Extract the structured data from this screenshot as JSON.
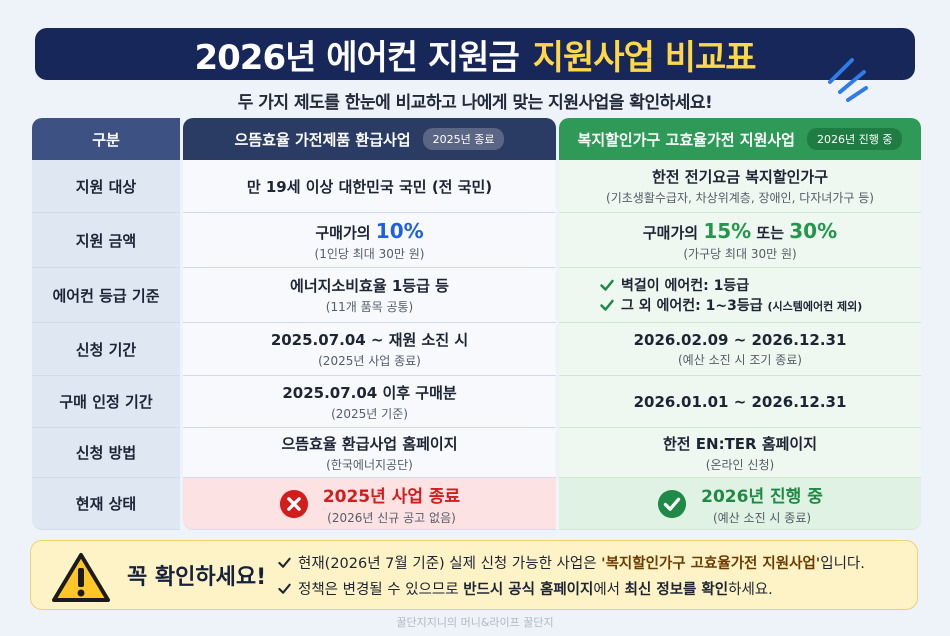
{
  "header": {
    "title": "2026년 에어컨 지원금",
    "title_highlight": "지원사업 비교표",
    "subtitle": "두 가지 제도를 한눈에 비교하고 나에게 맞는 지원사업을 확인하세요!"
  },
  "table": {
    "columns": [
      {
        "name": "구분"
      },
      {
        "name": "으뜸효율 가전제품 환급사업",
        "badge": "2025년 종료"
      },
      {
        "name": "복지할인가구 고효율가전 지원사업",
        "badge": "2026년 진행 중"
      }
    ],
    "rows": [
      {
        "label": "지원 대상",
        "a": {
          "main": [
            "만 19세 이상 대한민국 국민 (전 국민)"
          ]
        },
        "b": {
          "main": [
            "한전 전기요금 복지할인가구"
          ],
          "sub": "(기초생활수급자, 차상위계층, 장애인, 다자녀가구 등)"
        }
      },
      {
        "label": "지원 금액",
        "a": {
          "main": [
            "구매가의 ",
            "10%"
          ],
          "sub": "(1인당 최대 30만 원)"
        },
        "b": {
          "main": [
            "구매가의 ",
            "15%",
            " 또는 ",
            "30%"
          ],
          "sub": "(가구당 최대 30만 원)"
        }
      },
      {
        "label": "에어컨 등급 기준",
        "a": {
          "main": [
            "에너지소비효율 1등급 등"
          ],
          "sub": "(11개 품목 공통)"
        },
        "b": {
          "lines": [
            [
              "벽걸이 에어컨: 1등급"
            ],
            [
              "그 외 에어컨: 1~3등급 ",
              "(시스템에어컨 제외)"
            ]
          ]
        }
      },
      {
        "label": "신청 기간",
        "a": {
          "main": [
            "2025.07.04 ~ 재원 소진 시"
          ],
          "sub": "(2025년 사업 종료)"
        },
        "b": {
          "main": [
            "2026.02.09 ~ 2026.12.31"
          ],
          "sub": "(예산 소진 시 조기 종료)"
        }
      },
      {
        "label": "구매 인정 기간",
        "a": {
          "main": [
            "2025.07.04 이후 구매분"
          ],
          "sub": "(2025년 기준)"
        },
        "b": {
          "main": [
            "2026.01.01 ~ 2026.12.31"
          ]
        }
      },
      {
        "label": "신청 방법",
        "a": {
          "main": [
            "으뜸효율 환급사업 홈페이지"
          ],
          "sub": "(한국에너지공단)"
        },
        "b": {
          "main": [
            "한전 EN:TER 홈페이지"
          ],
          "sub": "(온라인 신청)"
        }
      },
      {
        "label": "현재 상태",
        "a": {
          "main": [
            "2025년 사업 종료"
          ],
          "sub": "(2026년 신규 공고 없음)"
        },
        "b": {
          "main": [
            "2026년 진행 중"
          ],
          "sub": "(예산 소진 시 종료)"
        }
      }
    ]
  },
  "notice": {
    "heading": "꼭 확인하세요!",
    "lines": [
      [
        "현재(2026년 7월 기준) 실제 신청 가능한 사업은 ",
        "'복지할인가구 고효율가전 지원사업'",
        "입니다."
      ],
      [
        "정책은 변경될 수 있으므로 ",
        "반드시 공식 홈페이지",
        "에서 ",
        "최신 정보를 확인",
        "하세요."
      ]
    ]
  },
  "footer": {
    "watermark": "꿀단지지니의 머니&라이프 꿀단지"
  }
}
